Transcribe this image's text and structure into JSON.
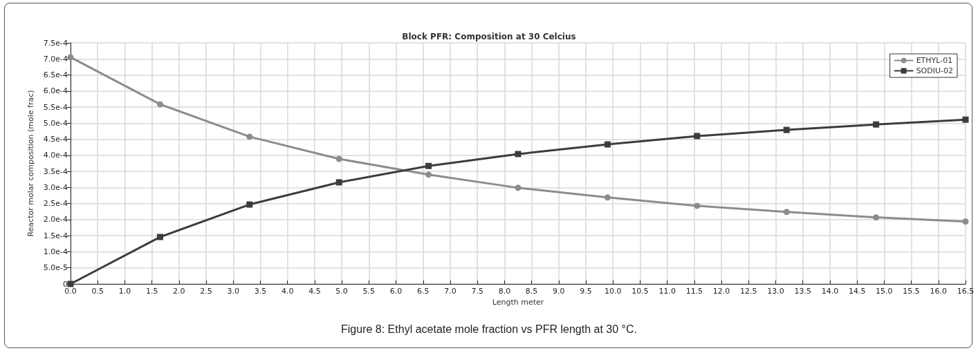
{
  "chart_data": {
    "type": "line",
    "title": "Block PFR: Composition at 30 Celcius",
    "xlabel": "Length meter",
    "ylabel": "Reactor molar composition (mole frac)",
    "annotations": [
      "Figure 8: Ethyl acetate mole fraction vs PFR length at 30 °C."
    ],
    "x": [
      0,
      1.65,
      3.3,
      4.95,
      6.6,
      8.25,
      9.9,
      11.55,
      13.2,
      14.85,
      16.5
    ],
    "series": [
      {
        "name": "ETHYL-01",
        "color": "#8c8c8c",
        "marker": "circle",
        "values": [
          0.000705,
          0.000559,
          0.000458,
          0.000389,
          0.00034,
          0.000299,
          0.000269,
          0.000243,
          0.000224,
          0.000207,
          0.000194
        ]
      },
      {
        "name": "SODIU-02",
        "color": "#3c3c3c",
        "marker": "square",
        "values": [
          0,
          0.000146,
          0.000247,
          0.000316,
          0.000367,
          0.000404,
          0.000434,
          0.00046,
          0.000479,
          0.000496,
          0.000511
        ]
      }
    ],
    "xlim": [
      0,
      16.5
    ],
    "xticks": [
      {
        "value": 0,
        "label": "0.0"
      },
      {
        "value": 0.5,
        "label": "0.5"
      },
      {
        "value": 1,
        "label": "1.0"
      },
      {
        "value": 1.5,
        "label": "1.5"
      },
      {
        "value": 2,
        "label": "2.0"
      },
      {
        "value": 2.5,
        "label": "2.5"
      },
      {
        "value": 3,
        "label": "3.0"
      },
      {
        "value": 3.5,
        "label": "3.5"
      },
      {
        "value": 4,
        "label": "4.0"
      },
      {
        "value": 4.5,
        "label": "4.5"
      },
      {
        "value": 5,
        "label": "5.0"
      },
      {
        "value": 5.5,
        "label": "5.5"
      },
      {
        "value": 6,
        "label": "6.0"
      },
      {
        "value": 6.5,
        "label": "6.5"
      },
      {
        "value": 7,
        "label": "7.0"
      },
      {
        "value": 7.5,
        "label": "7.5"
      },
      {
        "value": 8,
        "label": "8.0"
      },
      {
        "value": 8.5,
        "label": "8.5"
      },
      {
        "value": 9,
        "label": "9.0"
      },
      {
        "value": 9.5,
        "label": "9.5"
      },
      {
        "value": 10,
        "label": "10.0"
      },
      {
        "value": 10.5,
        "label": "10.5"
      },
      {
        "value": 11,
        "label": "11.0"
      },
      {
        "value": 11.5,
        "label": "11.5"
      },
      {
        "value": 12,
        "label": "12.0"
      },
      {
        "value": 12.5,
        "label": "12.5"
      },
      {
        "value": 13,
        "label": "13.0"
      },
      {
        "value": 13.5,
        "label": "13.5"
      },
      {
        "value": 14,
        "label": "14.0"
      },
      {
        "value": 14.5,
        "label": "14.5"
      },
      {
        "value": 15,
        "label": "15.0"
      },
      {
        "value": 15.5,
        "label": "15.5"
      },
      {
        "value": 16,
        "label": "16.0"
      },
      {
        "value": 16.5,
        "label": "16.5"
      }
    ],
    "ylim": [
      0,
      0.00075
    ],
    "yticks": [
      0,
      {
        "value": 5e-05,
        "label": "5.0e-5"
      },
      {
        "value": 0.0001,
        "label": "1.0e-4"
      },
      {
        "value": 0.00015,
        "label": "1.5e-4"
      },
      {
        "value": 0.0002,
        "label": "2.0e-4"
      },
      {
        "value": 0.00025,
        "label": "2.5e-4"
      },
      {
        "value": 0.0003,
        "label": "3.0e-4"
      },
      {
        "value": 0.00035,
        "label": "3.5e-4"
      },
      {
        "value": 0.0004,
        "label": "4.0e-4"
      },
      {
        "value": 0.00045,
        "label": "4.5e-4"
      },
      {
        "value": 0.0005,
        "label": "5.0e-4"
      },
      {
        "value": 0.00055,
        "label": "5.5e-4"
      },
      {
        "value": 0.0006,
        "label": "6.0e-4"
      },
      {
        "value": 0.00065,
        "label": "6.5e-4"
      },
      {
        "value": 0.0007,
        "label": "7.0e-4"
      },
      {
        "value": 0.00075,
        "label": "7.5e-4"
      }
    ],
    "grid": true,
    "legend": "top right",
    "line_style": "solid"
  }
}
